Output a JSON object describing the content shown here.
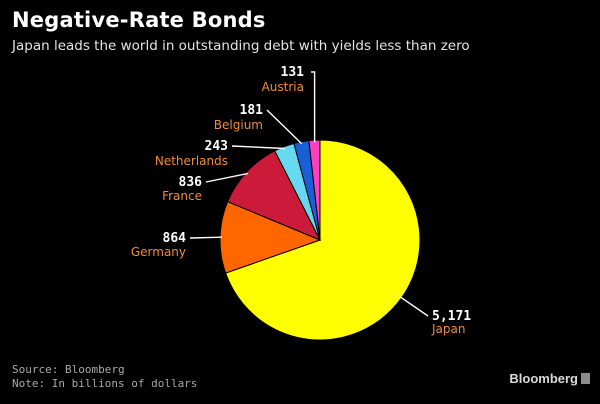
{
  "header": {
    "title": "Negative-Rate Bonds",
    "subtitle": "Japan leads the world in outstanding debt with yields less than zero"
  },
  "footer": {
    "source": "Source: Bloomberg",
    "note": "Note: In billions of dollars",
    "brand": "Bloomberg"
  },
  "chart_data": {
    "type": "pie",
    "title": "Negative-Rate Bonds",
    "subtitle": "Japan leads the world in outstanding debt with yields less than zero",
    "unit_note": "In billions of dollars",
    "slices": [
      {
        "name": "Japan",
        "value": 5171,
        "value_label": "5,171",
        "color": "#ffff00"
      },
      {
        "name": "Germany",
        "value": 864,
        "value_label": "864",
        "color": "#ff6600"
      },
      {
        "name": "France",
        "value": 836,
        "value_label": "836",
        "color": "#cc1a3a"
      },
      {
        "name": "Netherlands",
        "value": 243,
        "value_label": "243",
        "color": "#66d8f0"
      },
      {
        "name": "Belgium",
        "value": 181,
        "value_label": "181",
        "color": "#1a5fd6"
      },
      {
        "name": "Austria",
        "value": 131,
        "value_label": "131",
        "color": "#ff3fbf"
      }
    ],
    "label_value_color": "#ffffff",
    "label_name_color": "#f08c3c"
  }
}
